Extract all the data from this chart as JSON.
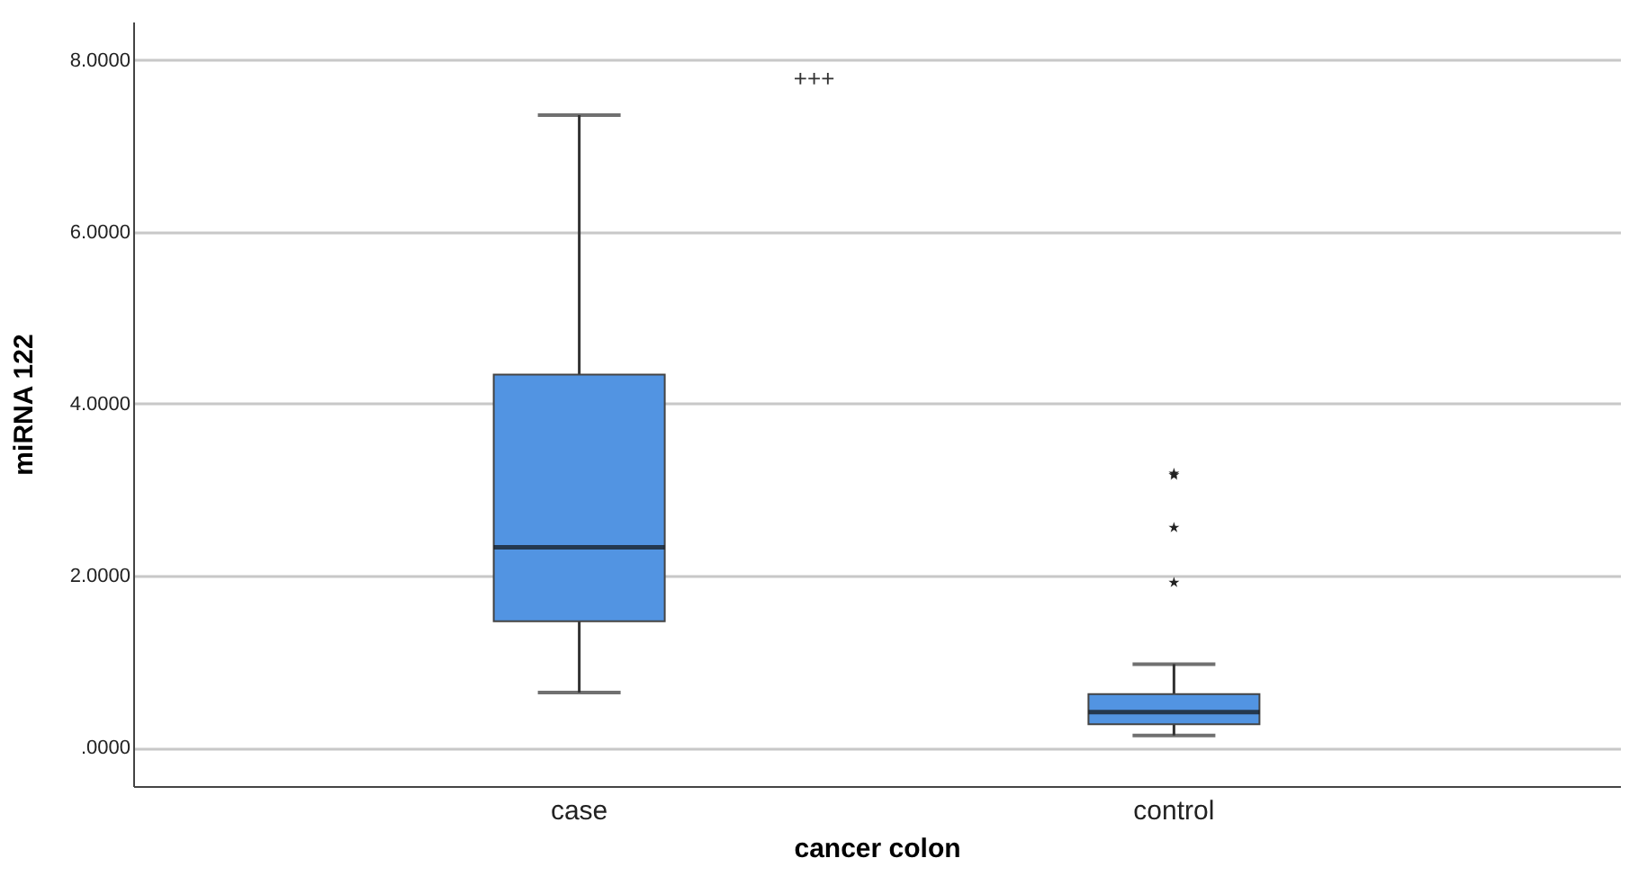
{
  "chart_data": {
    "type": "box",
    "xlabel": "cancer colon",
    "ylabel": "miRNA 122",
    "categories": [
      "case",
      "control"
    ],
    "series": [
      {
        "color": "#5294e2",
        "boxes": [
          {
            "low": 0.64,
            "q1": 1.47,
            "median": 2.33,
            "q3": 4.34,
            "high": 7.36
          },
          {
            "low": 0.14,
            "q1": 0.27,
            "median": 0.41,
            "q3": 0.62,
            "high": 0.97,
            "outliers": [
              1.92,
              2.56,
              3.17,
              3.19
            ]
          }
        ]
      }
    ],
    "marker": "star",
    "ylim": [
      -0.45,
      8.45
    ],
    "yticks": [
      {
        "value": 0,
        "label": ".0000"
      },
      {
        "value": 2,
        "label": "2.0000"
      },
      {
        "value": 4,
        "label": "4.0000"
      },
      {
        "value": 6,
        "label": "6.0000"
      },
      {
        "value": 8,
        "label": "8.0000"
      }
    ],
    "grid": "y",
    "annotations": [
      "+++"
    ]
  }
}
